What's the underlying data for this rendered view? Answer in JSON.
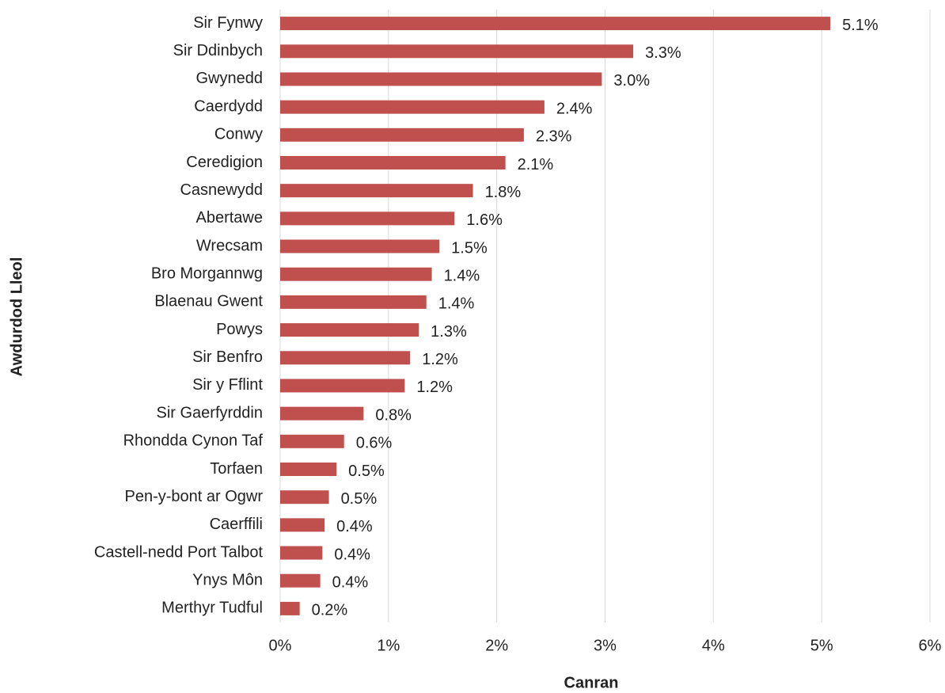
{
  "chart_data": {
    "type": "barh",
    "x_label": "Canran",
    "y_label": "Awdurdod Lleol",
    "categories": [
      "Sir Fynwy",
      "Sir Ddinbych",
      "Gwynedd",
      "Caerdydd",
      "Conwy",
      "Ceredigion",
      "Casnewydd",
      "Abertawe",
      "Wrecsam",
      "Bro Morgannwg",
      "Blaenau Gwent",
      "Powys",
      "Sir Benfro",
      "Sir y Fflint",
      "Sir Gaerfyrddin",
      "Rhondda Cynon Taf",
      "Torfaen",
      "Pen-y-bont ar Ogwr",
      "Caerffili",
      "Castell-nedd Port Talbot",
      "Ynys Môn",
      "Merthyr Tudful"
    ],
    "values": [
      5.08,
      3.26,
      2.97,
      2.44,
      2.25,
      2.08,
      1.78,
      1.61,
      1.47,
      1.4,
      1.35,
      1.28,
      1.2,
      1.15,
      0.77,
      0.59,
      0.52,
      0.45,
      0.41,
      0.39,
      0.37,
      0.18
    ],
    "value_labels": [
      "5.1%",
      "3.3%",
      "3.0%",
      "2.4%",
      "2.3%",
      "2.1%",
      "1.8%",
      "1.6%",
      "1.5%",
      "1.4%",
      "1.4%",
      "1.3%",
      "1.2%",
      "1.2%",
      "0.8%",
      "0.6%",
      "0.5%",
      "0.5%",
      "0.4%",
      "0.4%",
      "0.4%",
      "0.2%"
    ],
    "color": "#c0504d",
    "xlim": [
      0,
      6
    ],
    "xticks": [
      {
        "value": 0,
        "label": "0%"
      },
      {
        "value": 1,
        "label": "1%"
      },
      {
        "value": 2,
        "label": "2%"
      },
      {
        "value": 3,
        "label": "3%"
      },
      {
        "value": 4,
        "label": "4%"
      },
      {
        "value": 5,
        "label": "5%"
      },
      {
        "value": 6,
        "label": "6%"
      }
    ],
    "grid": true
  }
}
